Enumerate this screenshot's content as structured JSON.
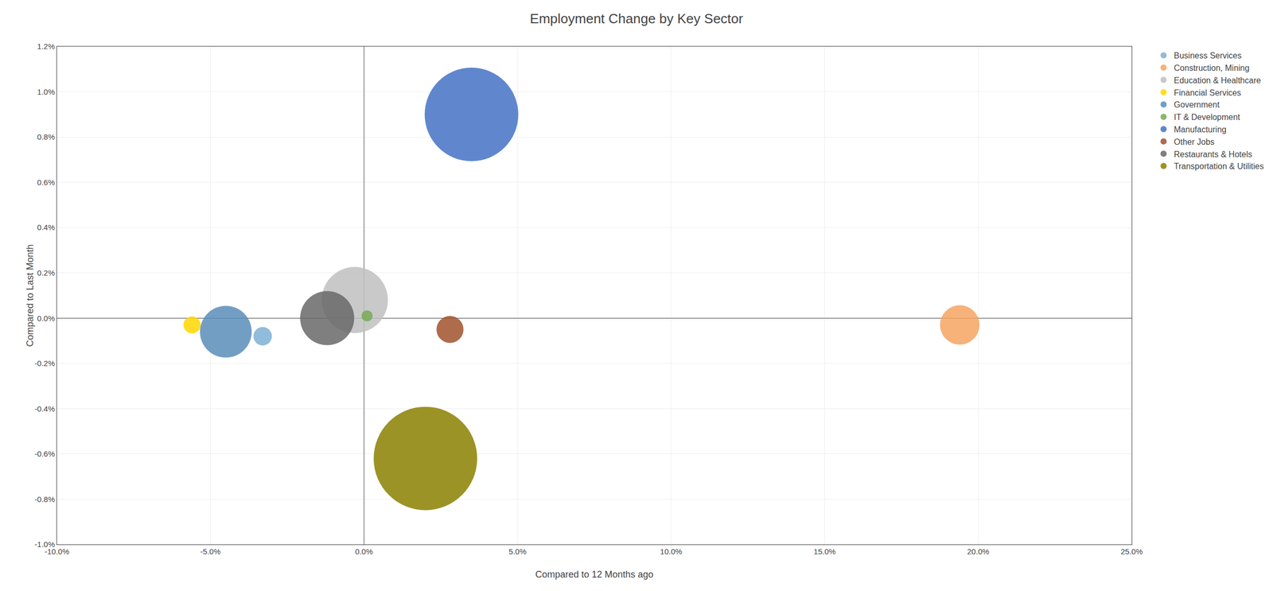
{
  "chart_data": {
    "type": "scatter",
    "marker": "bubble",
    "title": "Employment Change by Key Sector",
    "xlabel": "Compared to 12 Months ago",
    "ylabel": "Compared to Last Month",
    "xlim": [
      -0.1,
      0.25
    ],
    "ylim": [
      -0.01,
      0.012
    ],
    "xticks": [
      {
        "value": -0.1,
        "label": "-10.0%"
      },
      {
        "value": -0.05,
        "label": "-5.0%"
      },
      {
        "value": 0.0,
        "label": "0.0%"
      },
      {
        "value": 0.05,
        "label": "5.0%"
      },
      {
        "value": 0.1,
        "label": "10.0%"
      },
      {
        "value": 0.15,
        "label": "15.0%"
      },
      {
        "value": 0.2,
        "label": "20.0%"
      },
      {
        "value": 0.25,
        "label": "25.0%"
      }
    ],
    "yticks": [
      {
        "value": -0.01,
        "label": "-1.0%"
      },
      {
        "value": -0.008,
        "label": "-0.8%"
      },
      {
        "value": -0.006,
        "label": "-0.6%"
      },
      {
        "value": -0.004,
        "label": "-0.4%"
      },
      {
        "value": -0.002,
        "label": "-0.2%"
      },
      {
        "value": 0.0,
        "label": "0.0%"
      },
      {
        "value": 0.002,
        "label": "0.2%"
      },
      {
        "value": 0.004,
        "label": "0.4%"
      },
      {
        "value": 0.006,
        "label": "0.6%"
      },
      {
        "value": 0.008,
        "label": "0.8%"
      },
      {
        "value": 0.01,
        "label": "1.0%"
      },
      {
        "value": 0.012,
        "label": "1.2%"
      }
    ],
    "grid": true,
    "legend": "right",
    "series": [
      {
        "name": "Business Services",
        "color": "#7EB0D5",
        "x": [
          -0.033
        ],
        "y": [
          -0.0008
        ],
        "size": [
          700
        ]
      },
      {
        "name": "Construction, Mining",
        "color": "#F4A460",
        "x": [
          0.194
        ],
        "y": [
          -0.0003
        ],
        "size": [
          3200
        ]
      },
      {
        "name": "Education & Healthcare",
        "color": "#C0C0C0",
        "x": [
          -0.003
        ],
        "y": [
          0.0008
        ],
        "size": [
          9000
        ]
      },
      {
        "name": "Financial Services",
        "color": "#FFD700",
        "x": [
          -0.056
        ],
        "y": [
          -0.0003
        ],
        "size": [
          600
        ]
      },
      {
        "name": "Government",
        "color": "#5B8DB8",
        "x": [
          -0.045
        ],
        "y": [
          -0.0006
        ],
        "size": [
          5500
        ]
      },
      {
        "name": "IT & Development",
        "color": "#77AA55",
        "x": [
          0.001
        ],
        "y": [
          0.0001
        ],
        "size": [
          250
        ]
      },
      {
        "name": "Manufacturing",
        "color": "#4472C4",
        "x": [
          0.035
        ],
        "y": [
          0.009
        ],
        "size": [
          18000
        ]
      },
      {
        "name": "Other Jobs",
        "color": "#A0522D",
        "x": [
          0.028
        ],
        "y": [
          -0.0005
        ],
        "size": [
          1500
        ]
      },
      {
        "name": "Restaurants & Hotels",
        "color": "#696969",
        "x": [
          -0.012
        ],
        "y": [
          0.0
        ],
        "size": [
          6000
        ]
      },
      {
        "name": "Transportation & Utilities",
        "color": "#8B8000",
        "x": [
          0.02
        ],
        "y": [
          -0.0062
        ],
        "size": [
          22000
        ]
      }
    ]
  }
}
